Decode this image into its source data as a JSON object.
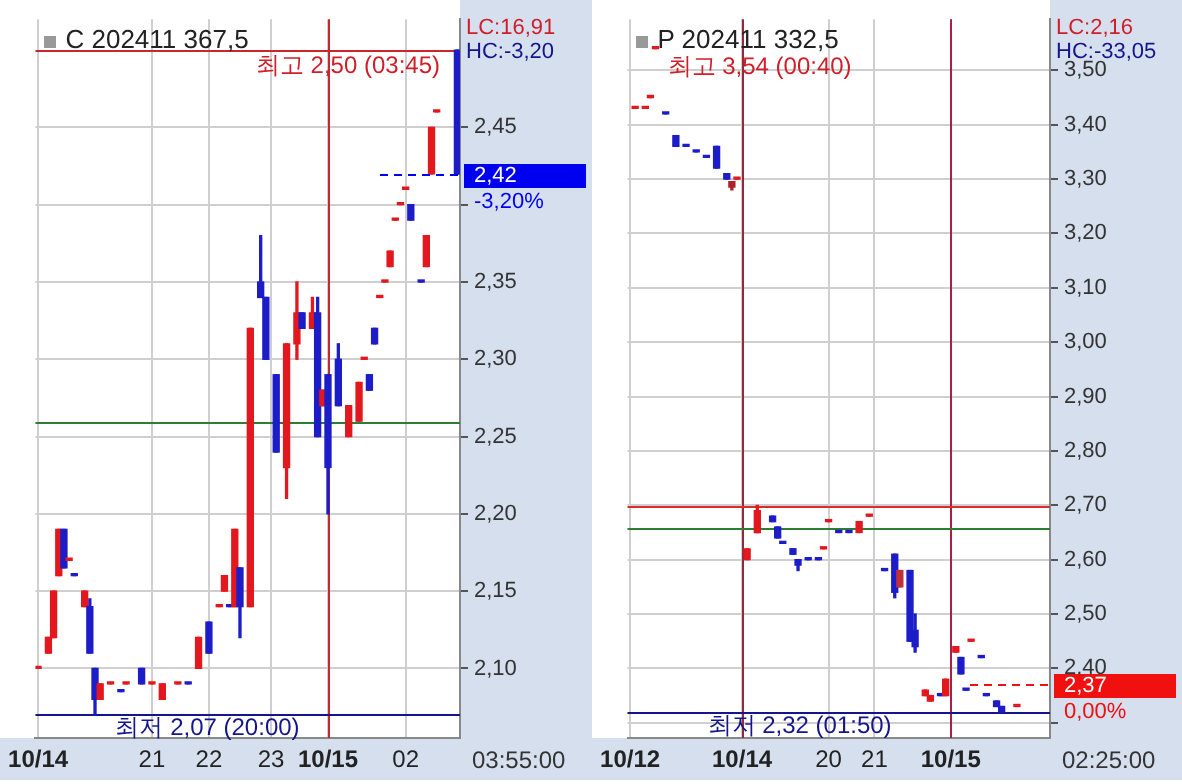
{
  "chart_data": [
    {
      "type": "candlestick",
      "title": "C 202411 367,5",
      "categories": [
        "10/14",
        null,
        null,
        null,
        null,
        null,
        null,
        null,
        null,
        null,
        null,
        null,
        null,
        null,
        null,
        null,
        null,
        null,
        null,
        null,
        null,
        null,
        "21",
        null,
        null,
        null,
        null,
        null,
        null,
        null,
        null,
        null,
        null,
        "22",
        null,
        null,
        null,
        null,
        null,
        null,
        null,
        null,
        null,
        null,
        null,
        "23",
        null,
        null,
        null,
        null,
        null,
        null,
        null,
        null,
        null,
        null,
        "10/15",
        null,
        null,
        null,
        null,
        null,
        null,
        null,
        null,
        null,
        null,
        null,
        null,
        null,
        null,
        "02",
        null,
        null,
        null,
        null,
        null,
        null,
        null,
        null,
        null,
        null
      ],
      "ohlc": [
        [
          2.1,
          2.1,
          2.1,
          2.1
        ],
        null,
        [
          2.11,
          2.12,
          2.11,
          2.12
        ],
        [
          2.12,
          2.15,
          2.12,
          2.15
        ],
        [
          2.16,
          2.19,
          2.16,
          2.19
        ],
        [
          2.19,
          2.19,
          2.165,
          2.165
        ],
        [
          2.17,
          2.17,
          2.17,
          2.17
        ],
        [
          2.16,
          2.16,
          2.16,
          2.16
        ],
        null,
        [
          2.14,
          2.15,
          2.14,
          2.15
        ],
        [
          2.14,
          2.145,
          2.11,
          2.11
        ],
        [
          2.1,
          2.1,
          2.07,
          2.08
        ],
        [
          2.08,
          2.09,
          2.08,
          2.09
        ],
        null,
        [
          2.09,
          2.09,
          2.09,
          2.09
        ],
        null,
        [
          2.085,
          2.085,
          2.085,
          2.085
        ],
        [
          2.09,
          2.09,
          2.09,
          2.09
        ],
        null,
        null,
        [
          2.1,
          2.1,
          2.09,
          2.09
        ],
        null,
        [
          2.09,
          2.09,
          2.09,
          2.09
        ],
        null,
        [
          2.08,
          2.09,
          2.08,
          2.09
        ],
        null,
        null,
        [
          2.09,
          2.09,
          2.09,
          2.09
        ],
        null,
        [
          2.09,
          2.09,
          2.09,
          2.09
        ],
        null,
        [
          2.1,
          2.12,
          2.1,
          2.12
        ],
        null,
        [
          2.13,
          2.13,
          2.11,
          2.11
        ],
        null,
        [
          2.14,
          2.14,
          2.14,
          2.14
        ],
        [
          2.15,
          2.16,
          2.15,
          2.16
        ],
        [
          2.14,
          2.14,
          2.14,
          2.14
        ],
        [
          2.14,
          2.19,
          2.14,
          2.19
        ],
        [
          2.165,
          2.165,
          2.12,
          2.14
        ],
        null,
        [
          2.14,
          2.32,
          2.14,
          2.32
        ],
        null,
        [
          2.35,
          2.38,
          2.34,
          2.34
        ],
        [
          2.34,
          2.34,
          2.3,
          2.3
        ],
        null,
        [
          2.29,
          2.29,
          2.24,
          2.24
        ],
        null,
        [
          2.23,
          2.31,
          2.21,
          2.31
        ],
        null,
        [
          2.31,
          2.35,
          2.3,
          2.33
        ],
        [
          2.33,
          2.33,
          2.32,
          2.32
        ],
        null,
        [
          2.32,
          2.34,
          2.32,
          2.33
        ],
        [
          2.33,
          2.34,
          2.25,
          2.25
        ],
        [
          2.27,
          2.28,
          2.27,
          2.28
        ],
        [
          2.29,
          2.29,
          2.2,
          2.23
        ],
        null,
        [
          2.3,
          2.31,
          2.27,
          2.27
        ],
        null,
        [
          2.25,
          2.27,
          2.25,
          2.27
        ],
        null,
        [
          2.26,
          2.285,
          2.26,
          2.285
        ],
        [
          2.3,
          2.3,
          2.3,
          2.3
        ],
        [
          2.29,
          2.29,
          2.28,
          2.28
        ],
        [
          2.32,
          2.32,
          2.31,
          2.31
        ],
        [
          2.34,
          2.34,
          2.34,
          2.34
        ],
        [
          2.35,
          2.35,
          2.35,
          2.35
        ],
        [
          2.36,
          2.37,
          2.36,
          2.37
        ],
        [
          2.39,
          2.39,
          2.39,
          2.39
        ],
        [
          2.4,
          2.4,
          2.4,
          2.4
        ],
        [
          2.41,
          2.41,
          2.41,
          2.41
        ],
        [
          2.4,
          2.4,
          2.39,
          2.39
        ],
        null,
        [
          2.35,
          2.35,
          2.35,
          2.35
        ],
        [
          2.36,
          2.38,
          2.36,
          2.38
        ],
        [
          2.42,
          2.45,
          2.42,
          2.45
        ],
        [
          2.46,
          2.46,
          2.46,
          2.46
        ],
        null,
        null,
        null,
        [
          2.5,
          2.5,
          2.42,
          2.42
        ]
      ],
      "colors": [
        "#e3171e",
        null,
        "#e3171e",
        "#e3171e",
        "#e3171e",
        "#1c1cc8",
        "#e3171e",
        "#1c1cc8",
        null,
        "#e3171e",
        "#1c1cc8",
        "#1c1cc8",
        "#e3171e",
        null,
        "#e3171e",
        null,
        "#1c1cc8",
        "#e3171e",
        null,
        null,
        "#1c1cc8",
        null,
        "#e3171e",
        null,
        "#e3171e",
        null,
        null,
        "#e3171e",
        null,
        "#1c1cc8",
        null,
        "#e3171e",
        null,
        "#1c1cc8",
        null,
        "#e3171e",
        "#e3171e",
        "#1c1cc8",
        "#e3171e",
        "#1c1cc8",
        null,
        "#e3171e",
        null,
        "#1c1cc8",
        "#1c1cc8",
        null,
        "#1c1cc8",
        null,
        "#e3171e",
        null,
        "#e3171e",
        "#1c1cc8",
        null,
        "#e3171e",
        "#1c1cc8",
        "#e3171e",
        "#1c1cc8",
        null,
        "#1c1cc8",
        null,
        "#e3171e",
        null,
        "#e3171e",
        "#e3171e",
        "#1c1cc8",
        "#1c1cc8",
        "#e3171e",
        "#e3171e",
        "#e3171e",
        "#e3171e",
        "#e3171e",
        "#e3171e",
        "#1c1cc8",
        null,
        "#1c1cc8",
        "#e3171e",
        "#e3171e",
        "#e3171e",
        null,
        null,
        null,
        "#1c1cc8"
      ],
      "ylim": [
        2.055,
        2.52
      ],
      "yticks": [
        {
          "value": 2.1,
          "label": "2,10"
        },
        {
          "value": 2.15,
          "label": "2,15"
        },
        {
          "value": 2.2,
          "label": "2,20"
        },
        {
          "value": 2.25,
          "label": "2,25"
        },
        {
          "value": 2.3,
          "label": "2,30"
        },
        {
          "value": 2.35,
          "label": "2,35"
        },
        {
          "value": 2.4,
          "label": null
        },
        {
          "value": 2.45,
          "label": "2,45"
        }
      ],
      "grid": true,
      "ref_lines": [
        {
          "axis": "x",
          "value": "10/15",
          "color": "#c8282d"
        },
        {
          "axis": "y",
          "value": 2.5,
          "color": "#c8282d"
        },
        {
          "axis": "y",
          "value": 2.26,
          "color": "#2e7d32"
        },
        {
          "axis": "y",
          "value": 2.07,
          "color": "#14148c"
        },
        {
          "axis": "y",
          "value": 2.42,
          "label": "2,42",
          "color": "#0000f0"
        }
      ],
      "annotations": [
        "LC:16,91",
        "HC:-3,20",
        "-3,20%",
        "03:55:00",
        {
          "text": "최고 2,50 (03:45)",
          "y": 2.5
        },
        {
          "text": "최저 2,07 (20:00)",
          "y": 2.07
        }
      ]
    },
    {
      "type": "candlestick",
      "title": "P 202411 332,5",
      "categories": [
        "10/12",
        null,
        null,
        null,
        null,
        null,
        null,
        null,
        null,
        null,
        null,
        null,
        null,
        null,
        null,
        null,
        null,
        null,
        null,
        null,
        null,
        null,
        "10/14",
        null,
        null,
        null,
        null,
        null,
        null,
        null,
        null,
        null,
        null,
        null,
        null,
        null,
        null,
        null,
        null,
        "20",
        null,
        null,
        null,
        null,
        null,
        null,
        null,
        null,
        "21",
        null,
        null,
        null,
        null,
        null,
        null,
        null,
        null,
        null,
        null,
        null,
        null,
        null,
        null,
        "10/15",
        null,
        null,
        null,
        null,
        null,
        null,
        null,
        null,
        null,
        null,
        null,
        null,
        null,
        null,
        null,
        null,
        null,
        null,
        null
      ],
      "ohlc": [
        null,
        [
          3.43,
          3.43,
          3.43,
          3.43
        ],
        null,
        [
          3.43,
          3.43,
          3.43,
          3.43
        ],
        [
          3.45,
          3.45,
          3.45,
          3.45
        ],
        [
          3.54,
          3.54,
          3.54,
          3.54
        ],
        null,
        [
          3.42,
          3.42,
          3.42,
          3.42
        ],
        null,
        [
          3.38,
          3.38,
          3.36,
          3.36
        ],
        null,
        [
          3.36,
          3.36,
          3.36,
          3.36
        ],
        null,
        [
          3.35,
          3.35,
          3.35,
          3.35
        ],
        null,
        [
          3.34,
          3.34,
          3.34,
          3.34
        ],
        null,
        [
          3.36,
          3.36,
          3.32,
          3.32
        ],
        null,
        [
          3.31,
          3.31,
          3.3,
          3.3
        ],
        [
          3.285,
          3.295,
          3.28,
          3.295
        ],
        [
          3.3,
          3.3,
          3.3,
          3.3
        ],
        null,
        [
          2.6,
          2.62,
          2.6,
          2.62
        ],
        null,
        [
          2.65,
          2.7,
          2.65,
          2.69
        ],
        null,
        null,
        [
          2.68,
          2.68,
          2.67,
          2.67
        ],
        [
          2.66,
          2.66,
          2.64,
          2.64
        ],
        [
          2.63,
          2.63,
          2.63,
          2.63
        ],
        null,
        [
          2.62,
          2.62,
          2.61,
          2.61
        ],
        [
          2.6,
          2.6,
          2.58,
          2.59
        ],
        null,
        [
          2.6,
          2.6,
          2.6,
          2.6
        ],
        null,
        [
          2.6,
          2.6,
          2.6,
          2.6
        ],
        [
          2.62,
          2.62,
          2.62,
          2.62
        ],
        [
          2.67,
          2.67,
          2.67,
          2.67
        ],
        null,
        [
          2.65,
          2.65,
          2.65,
          2.65
        ],
        null,
        [
          2.65,
          2.65,
          2.65,
          2.65
        ],
        null,
        [
          2.65,
          2.67,
          2.65,
          2.67
        ],
        null,
        [
          2.68,
          2.68,
          2.68,
          2.68
        ],
        null,
        null,
        [
          2.58,
          2.58,
          2.58,
          2.58
        ],
        null,
        [
          2.61,
          2.61,
          2.53,
          2.54
        ],
        [
          2.55,
          2.58,
          2.55,
          2.58
        ],
        null,
        [
          2.58,
          2.58,
          2.45,
          2.45
        ],
        [
          2.47,
          2.5,
          2.43,
          2.44
        ],
        null,
        [
          2.35,
          2.36,
          2.35,
          2.36
        ],
        [
          2.34,
          2.35,
          2.34,
          2.35
        ],
        null,
        [
          2.35,
          2.35,
          2.35,
          2.35
        ],
        [
          2.35,
          2.38,
          2.35,
          2.38
        ],
        null,
        [
          2.43,
          2.44,
          2.43,
          2.44
        ],
        [
          2.42,
          2.42,
          2.39,
          2.39
        ],
        [
          2.36,
          2.36,
          2.36,
          2.36
        ],
        [
          2.45,
          2.45,
          2.45,
          2.45
        ],
        null,
        [
          2.42,
          2.42,
          2.42,
          2.42
        ],
        [
          2.35,
          2.35,
          2.35,
          2.35
        ],
        null,
        [
          2.34,
          2.34,
          2.33,
          2.33
        ],
        [
          2.33,
          2.33,
          2.32,
          2.32
        ],
        null,
        null,
        [
          2.33,
          2.33,
          2.33,
          2.33
        ],
        null,
        null,
        null,
        null,
        null,
        null
      ],
      "colors": [
        null,
        "#e3171e",
        null,
        "#e3171e",
        "#e3171e",
        "#e3171e",
        null,
        "#1c1cc8",
        null,
        "#1c1cc8",
        null,
        "#1c1cc8",
        null,
        "#1c1cc8",
        null,
        "#1c1cc8",
        null,
        "#1c1cc8",
        null,
        "#1c1cc8",
        "#b0202a",
        "#e3171e",
        null,
        "#e3171e",
        null,
        "#e3171e",
        null,
        null,
        "#1c1cc8",
        "#1c1cc8",
        "#1c1cc8",
        null,
        "#1c1cc8",
        "#1c1cc8",
        null,
        "#1c1cc8",
        null,
        "#1c1cc8",
        "#e3171e",
        "#e3171e",
        null,
        "#1c1cc8",
        null,
        "#1c1cc8",
        null,
        "#e3171e",
        null,
        "#e3171e",
        null,
        null,
        "#1c1cc8",
        null,
        "#1c1cc8",
        "#c0303a",
        null,
        "#1c1cc8",
        "#1c1cc8",
        null,
        "#e3171e",
        "#e3171e",
        null,
        "#1c1cc8",
        "#e3171e",
        null,
        "#e3171e",
        "#1c1cc8",
        "#1c1cc8",
        "#e3171e",
        null,
        "#1c1cc8",
        "#1c1cc8",
        null,
        "#1c1cc8",
        "#1c1cc8",
        null,
        null,
        "#e3171e",
        null,
        null,
        null,
        null,
        null,
        null
      ],
      "ylim": [
        2.272,
        3.594
      ],
      "yticks": [
        {
          "value": 2.3,
          "label": null
        },
        {
          "value": 2.4,
          "label": "2,40"
        },
        {
          "value": 2.5,
          "label": "2,50"
        },
        {
          "value": 2.6,
          "label": "2,60"
        },
        {
          "value": 2.7,
          "label": "2,70"
        },
        {
          "value": 2.8,
          "label": "2,80"
        },
        {
          "value": 2.9,
          "label": "2,90"
        },
        {
          "value": 3.0,
          "label": "3,00"
        },
        {
          "value": 3.1,
          "label": "3,10"
        },
        {
          "value": 3.2,
          "label": "3,20"
        },
        {
          "value": 3.3,
          "label": "3,30"
        },
        {
          "value": 3.4,
          "label": "3,40"
        },
        {
          "value": 3.5,
          "label": "3,50"
        }
      ],
      "grid": true,
      "ref_lines": [
        {
          "axis": "x",
          "value": "10/14",
          "color": "#96283c"
        },
        {
          "axis": "x",
          "value": "10/15",
          "color": "#a82046"
        },
        {
          "axis": "y",
          "value": 2.7,
          "color": "#dc2d2d"
        },
        {
          "axis": "y",
          "value": 2.66,
          "color": "#2e7d32"
        },
        {
          "axis": "y",
          "value": 2.32,
          "color": "#14148c"
        },
        {
          "axis": "y",
          "value": 2.37,
          "label": "2,37",
          "color": "#f01010"
        }
      ],
      "annotations": [
        "LC:2,16",
        "HC:-33,05",
        "0,00%",
        "02:25:00",
        "최고 3,54 (00:40)",
        {
          "text": "최저 2,32 (01:50)",
          "y": 2.32
        }
      ]
    }
  ]
}
